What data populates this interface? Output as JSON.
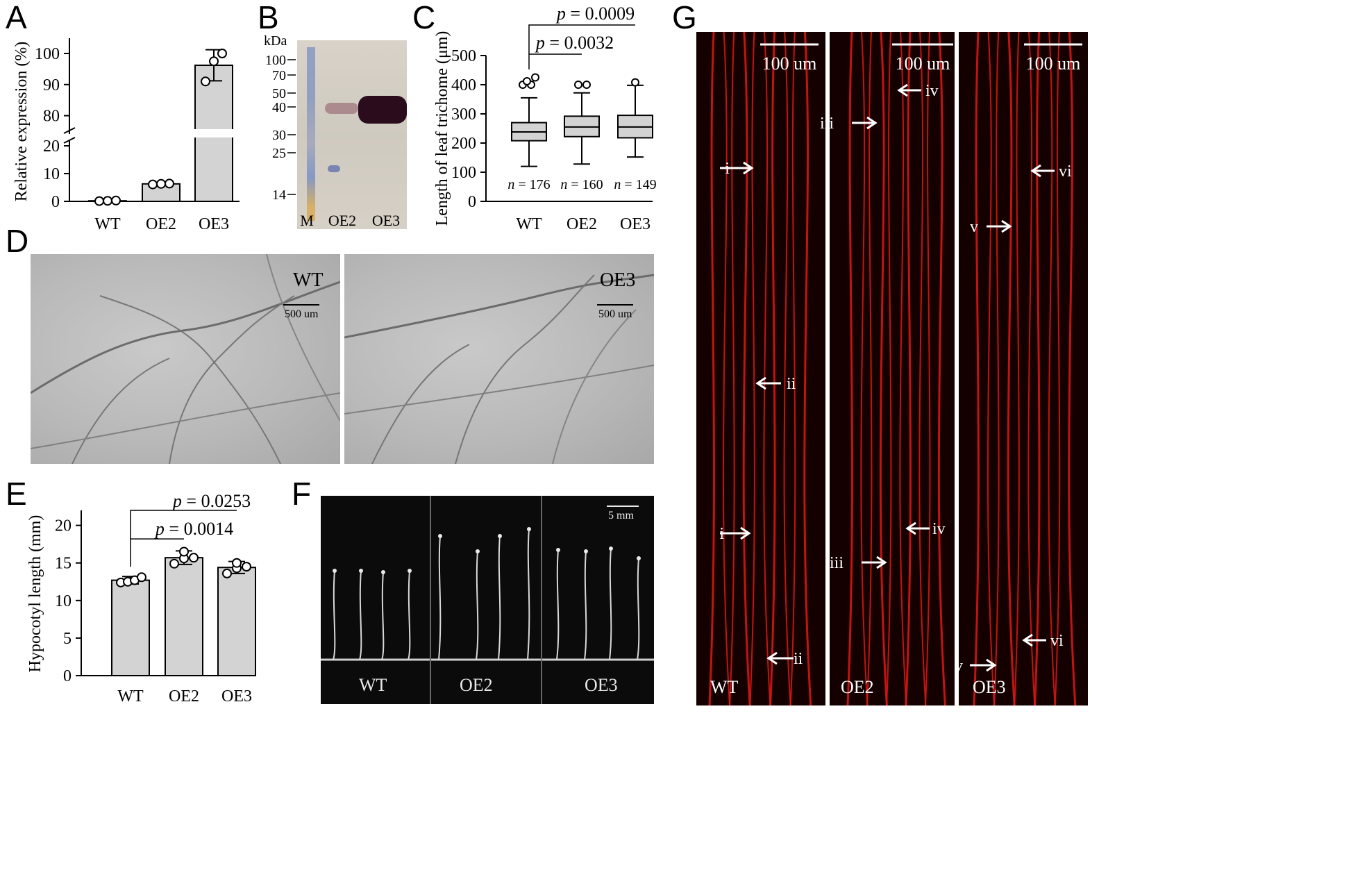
{
  "panels": {
    "A": "A",
    "B": "B",
    "C": "C",
    "D": "D",
    "E": "E",
    "F": "F",
    "G": "G"
  },
  "chart_data": [
    {
      "panel": "A",
      "type": "bar",
      "ylabel": "Relative expression (%)",
      "categories": [
        "WT",
        "OE2",
        "OE3"
      ],
      "values": [
        0.2,
        6.3,
        96.2
      ],
      "error": [
        0.3,
        0.5,
        5.0
      ],
      "points": [
        [
          0.1,
          0.2,
          0.3
        ],
        [
          6.1,
          6.3,
          6.4
        ],
        [
          91.0,
          97.5,
          100.0
        ]
      ],
      "axis_break": [
        20,
        77
      ],
      "yticks_lower": [
        "0",
        "10",
        "20"
      ],
      "yticks_upper": [
        "80",
        "90",
        "100"
      ],
      "bar_color": "#d3d3d3"
    },
    {
      "panel": "B",
      "type": "blot",
      "unit_label": "kDa",
      "markers": [
        "100",
        "70",
        "50",
        "40",
        "30",
        "25",
        "14"
      ],
      "lanes": [
        "M",
        "OE2",
        "OE3"
      ]
    },
    {
      "panel": "C",
      "type": "boxplot",
      "ylabel": "Length of leaf trichome (μm)",
      "categories": [
        "WT",
        "OE2",
        "OE3"
      ],
      "ylim": [
        0,
        500
      ],
      "yticks": [
        "0",
        "100",
        "200",
        "300",
        "400",
        "500"
      ],
      "boxes": [
        {
          "min": 120,
          "q1": 208,
          "median": 238,
          "q3": 270,
          "max": 355,
          "outliers": [
            400,
            400,
            412,
            425
          ]
        },
        {
          "min": 128,
          "q1": 222,
          "median": 255,
          "q3": 292,
          "max": 372,
          "outliers": [
            400,
            400
          ]
        },
        {
          "min": 152,
          "q1": 218,
          "median": 255,
          "q3": 295,
          "max": 398,
          "outliers": [
            408
          ]
        }
      ],
      "n_labels": [
        "n = 176",
        "n = 160",
        "n = 149"
      ],
      "comparisons": [
        {
          "label": "p = 0.0032",
          "from": 0,
          "to": 1
        },
        {
          "label": "p = 0.0009",
          "from": 0,
          "to": 2
        }
      ]
    },
    {
      "panel": "E",
      "type": "bar",
      "ylabel": "Hypocotyl length (mm)",
      "categories": [
        "WT",
        "OE2",
        "OE3"
      ],
      "values": [
        12.7,
        15.7,
        14.4
      ],
      "error": [
        0.5,
        0.9,
        0.8
      ],
      "points": [
        [
          12.4,
          12.5,
          12.7,
          13.1
        ],
        [
          14.9,
          15.6,
          15.7,
          16.5
        ],
        [
          13.6,
          14.3,
          14.5,
          15.0
        ]
      ],
      "ylim": [
        0,
        22
      ],
      "yticks": [
        "0",
        "5",
        "10",
        "15",
        "20"
      ],
      "comparisons": [
        {
          "label": "p = 0.0014",
          "from": 0,
          "to": 1
        },
        {
          "label": "p = 0.0253",
          "from": 0,
          "to": 2
        }
      ]
    }
  ],
  "panel_d": {
    "labels": [
      "WT",
      "OE3"
    ],
    "scalebar": "500 um"
  },
  "panel_f": {
    "labels": [
      "WT",
      "OE2",
      "OE3"
    ],
    "scalebar": "5 mm"
  },
  "panel_g": {
    "labels": [
      "WT",
      "OE2",
      "OE3"
    ],
    "scalebar": "100 um",
    "arrows": [
      "i",
      "i",
      "ii",
      "ii",
      "iii",
      "iii",
      "iv",
      "iv",
      "v",
      "v",
      "vi",
      "vi"
    ]
  }
}
